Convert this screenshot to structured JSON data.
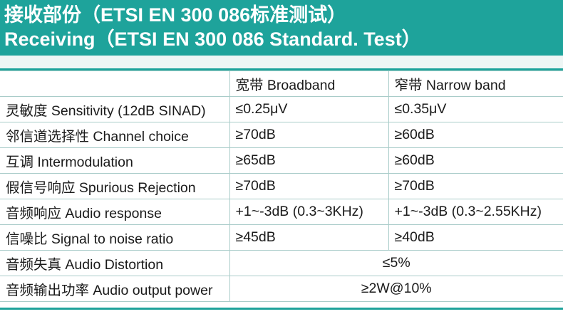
{
  "header": {
    "title_cn": "接收部份（ETSI EN 300 086标准测试）",
    "title_en": "Receiving（ETSI EN 300 086 Standard. Test）"
  },
  "table": {
    "header": [
      "宽带 Broadband",
      "窄带 Narrow band"
    ],
    "rows": [
      [
        "灵敏度 Sensitivity (12dB SINAD)",
        "≤0.25μV",
        "≤0.35μV"
      ],
      [
        "邻信道选择性 Channel choice",
        "≥70dB",
        "≥60dB"
      ],
      [
        "互调 Intermodulation",
        "≥65dB",
        "≥60dB"
      ],
      [
        "假信号响应 Spurious Rejection",
        "≥70dB",
        "≥70dB"
      ],
      [
        "音频响应 Audio response",
        "+1~-3dB (0.3~3KHz)",
        "+1~-3dB (0.3~2.55KHz)"
      ],
      [
        "信噪比 Signal to noise ratio",
        "≥45dB",
        "≥40dB"
      ],
      [
        "音频失真 Audio Distortion",
        "≤5%"
      ],
      [
        "音频输出功率 Audio output power",
        "≥2W@10%"
      ]
    ]
  }
}
